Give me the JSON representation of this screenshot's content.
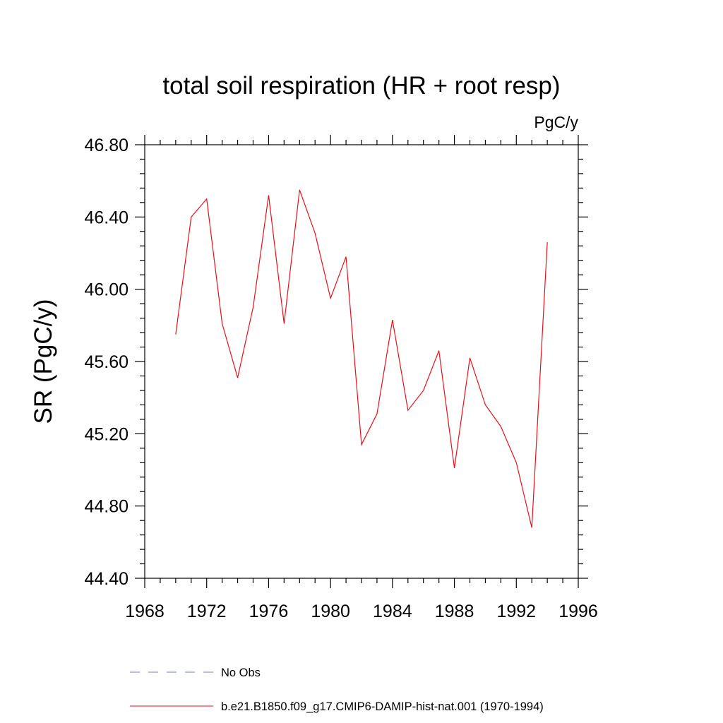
{
  "chart_data": {
    "type": "line",
    "title": "total soil respiration (HR + root resp)",
    "units_label": "PgC/y",
    "xlabel": "",
    "ylabel": "SR  (PgC/y)",
    "xlim": [
      1968,
      1996
    ],
    "ylim": [
      44.4,
      46.8
    ],
    "x_ticks": [
      "1968",
      "1972",
      "1976",
      "1980",
      "1984",
      "1988",
      "1992",
      "1996"
    ],
    "y_ticks": [
      "44.40",
      "44.80",
      "45.20",
      "45.60",
      "46.00",
      "46.40",
      "46.80"
    ],
    "grid": false,
    "legend_position": "bottom",
    "series": [
      {
        "name": "No Obs",
        "color": "#7b7bd6",
        "style": "dashed",
        "x": [],
        "values": []
      },
      {
        "name": "b.e21.B1850.f09_g17.CMIP6-DAMIP-hist-nat.001 (1970-1994)",
        "color": "#e8101a",
        "style": "solid",
        "x": [
          1970,
          1971,
          1972,
          1973,
          1974,
          1975,
          1976,
          1977,
          1978,
          1979,
          1980,
          1981,
          1982,
          1983,
          1984,
          1985,
          1986,
          1987,
          1988,
          1989,
          1990,
          1991,
          1992,
          1993,
          1994
        ],
        "values": [
          45.75,
          46.4,
          46.5,
          45.81,
          45.51,
          45.9,
          46.52,
          45.81,
          46.55,
          46.31,
          45.95,
          46.18,
          45.14,
          45.31,
          45.83,
          45.33,
          45.44,
          45.66,
          45.01,
          45.62,
          45.36,
          45.24,
          45.04,
          44.68,
          46.26
        ]
      }
    ]
  }
}
